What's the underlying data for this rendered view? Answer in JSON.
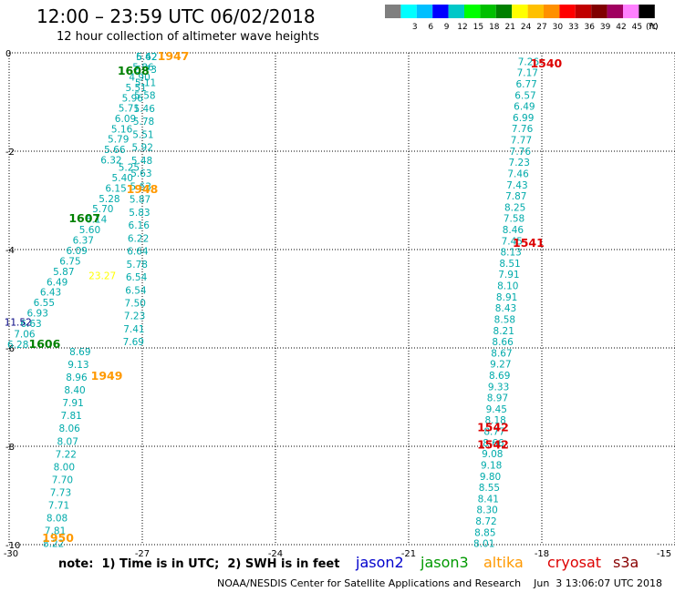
{
  "header": {
    "title": "12:00 – 23:59 UTC 06/02/2018",
    "subtitle": "12 hour collection of altimeter wave heights"
  },
  "colorbar": {
    "unit_label": "(ft)",
    "bins": [
      {
        "label": "",
        "color": "#7f7f7f"
      },
      {
        "label": "3",
        "color": "#00ffff"
      },
      {
        "label": "6",
        "color": "#00bfff"
      },
      {
        "label": "9",
        "color": "#0000ff"
      },
      {
        "label": "12",
        "color": "#00c8c8"
      },
      {
        "label": "15",
        "color": "#00ff00"
      },
      {
        "label": "18",
        "color": "#00c000"
      },
      {
        "label": "21",
        "color": "#008000"
      },
      {
        "label": "24",
        "color": "#ffff00"
      },
      {
        "label": "27",
        "color": "#ffc000"
      },
      {
        "label": "30",
        "color": "#ff9000"
      },
      {
        "label": "33",
        "color": "#ff0000"
      },
      {
        "label": "36",
        "color": "#c00000"
      },
      {
        "label": "39",
        "color": "#800000"
      },
      {
        "label": "42",
        "color": "#a00060"
      },
      {
        "label": "45",
        "color": "#ff80ff"
      },
      {
        "label": "70",
        "color": "#000000"
      }
    ]
  },
  "note": "note:  1) Time is in UTC;  2) SWH is in feet",
  "legend": [
    {
      "label": "jason2",
      "color": "#0000cc"
    },
    {
      "label": "jason3",
      "color": "#009900"
    },
    {
      "label": "altika",
      "color": "#ff9900"
    },
    {
      "label": "cryosat",
      "color": "#dd0000"
    },
    {
      "label": "s3a",
      "color": "#880000"
    }
  ],
  "footer": "NOAA/NESDIS Center for Satellite Applications and Research    Jun  3 13:06:07 UTC 2018",
  "chart_data": {
    "type": "scatter",
    "xlim": [
      -30,
      -15
    ],
    "ylim": [
      -10,
      0
    ],
    "xticks": [
      "-30",
      "-27",
      "-24",
      "-21",
      "-18",
      "-15"
    ],
    "yticks": [
      "-10",
      "-8",
      "-6",
      "-4",
      "-2",
      "0"
    ],
    "grid": true,
    "grid_style": "dotted",
    "tracks": [
      {
        "name": "Left track A",
        "x_start": -26.9,
        "x_end": -27.7,
        "y_start": 0.0,
        "y_end": -2.1,
        "color": "#00aaaa",
        "values": [
          "5.42",
          "5.86",
          "4.90",
          "5.51",
          "5.96",
          "5.71",
          "6.09",
          "5.16",
          "5.79",
          "5.66",
          "6.32"
        ]
      },
      {
        "name": "Left track B",
        "x_start": -27.3,
        "x_end": -29.8,
        "y_start": -2.25,
        "y_end": -5.85,
        "color": "#00aaaa",
        "values": [
          "5.25",
          "5.40",
          "6.15",
          "5.28",
          "5.70",
          "6.14",
          "5.60",
          "6.37",
          "6.09",
          "6.75",
          "5.87",
          "6.49",
          "6.43",
          "6.55",
          "6.93",
          "6.63",
          "7.06",
          "6.28"
        ]
      },
      {
        "name": "Center track",
        "x_start": -26.9,
        "x_end": -27.2,
        "y_start": 0.0,
        "y_end": -5.8,
        "color": "#00aaaa",
        "values": [
          "6.62",
          "5.73",
          "5.11",
          "5.58",
          "5.46",
          "5.78",
          "5.51",
          "5.92",
          "5.48",
          "5.63",
          "5.63",
          "5.87",
          "5.83",
          "6.16",
          "6.22",
          "6.64",
          "5.78",
          "6.54",
          "6.54",
          "7.50",
          "7.23",
          "7.41",
          "7.69"
        ]
      },
      {
        "name": "Lower left track",
        "x_start": -28.4,
        "x_end": -29.0,
        "y_start": -6.0,
        "y_end": -9.9,
        "color": "#00aaaa",
        "values": [
          "8.69",
          "9.13",
          "8.96",
          "8.40",
          "7.91",
          "7.81",
          "8.06",
          "8.07",
          "7.22",
          "8.00",
          "7.70",
          "7.73",
          "7.71",
          "8.08",
          "7.81",
          "8.22"
        ]
      },
      {
        "name": "Right track",
        "x_start": -18.3,
        "x_end": -19.3,
        "y_start": -0.1,
        "y_end": -9.9,
        "color": "#00aaaa",
        "values": [
          "7.26",
          "7.17",
          "6.77",
          "6.57",
          "6.49",
          "6.99",
          "7.76",
          "7.77",
          "7.76",
          "7.23",
          "7.46",
          "7.43",
          "7.87",
          "8.25",
          "7.58",
          "8.46",
          "7.45",
          "8.13",
          "8.51",
          "7.91",
          "8.10",
          "8.91",
          "8.43",
          "8.58",
          "8.21",
          "8.66",
          "8.67",
          "9.27",
          "8.69",
          "9.33",
          "8.97",
          "9.45",
          "8.18",
          "8.77",
          "8.66",
          "9.08",
          "9.18",
          "9.80",
          "8.55",
          "8.41",
          "8.30",
          "8.72",
          "8.85",
          "8.01"
        ]
      }
    ],
    "special_labels": [
      {
        "text": "11.52",
        "x": -29.8,
        "y": -5.4,
        "color": "#000080"
      },
      {
        "text": "23.27",
        "x": -27.9,
        "y": -4.45,
        "color": "#ffff00"
      }
    ],
    "time_labels": [
      {
        "text": "1947",
        "x": -26.3,
        "y": 0.0,
        "color": "#ff9900"
      },
      {
        "text": "1608",
        "x": -27.2,
        "y": -0.3,
        "color": "#008000"
      },
      {
        "text": "1948",
        "x": -27.0,
        "y": -2.7,
        "color": "#ff9900"
      },
      {
        "text": "1607",
        "x": -28.3,
        "y": -3.3,
        "color": "#008000"
      },
      {
        "text": "1606",
        "x": -29.2,
        "y": -5.85,
        "color": "#008000"
      },
      {
        "text": "1949",
        "x": -27.8,
        "y": -6.5,
        "color": "#ff9900"
      },
      {
        "text": "1950",
        "x": -28.9,
        "y": -9.8,
        "color": "#ff9900"
      },
      {
        "text": "1540",
        "x": -17.9,
        "y": -0.15,
        "color": "#dd0000"
      },
      {
        "text": "1541",
        "x": -18.3,
        "y": -3.8,
        "color": "#dd0000"
      },
      {
        "text": "1542",
        "x": -19.1,
        "y": -7.55,
        "color": "#dd0000"
      },
      {
        "text": "1542",
        "x": -19.1,
        "y": -7.9,
        "color": "#dd0000"
      }
    ]
  }
}
